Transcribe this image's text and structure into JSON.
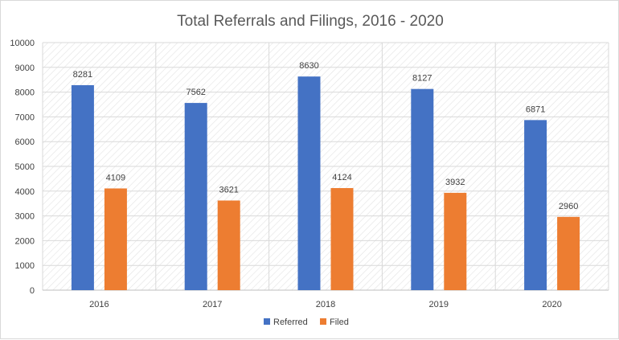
{
  "chart_data": {
    "type": "bar",
    "title": "Total Referrals and Filings, 2016 - 2020",
    "xlabel": "",
    "ylabel": "",
    "categories": [
      "2016",
      "2017",
      "2018",
      "2019",
      "2020"
    ],
    "series": [
      {
        "name": "Referred",
        "color": "#4472C4",
        "values": [
          8281,
          7562,
          8630,
          8127,
          6871
        ]
      },
      {
        "name": "Filed",
        "color": "#ED7D31",
        "values": [
          4109,
          3621,
          4124,
          3932,
          2960
        ]
      }
    ],
    "ylim": [
      0,
      10000
    ],
    "yticks": [
      0,
      1000,
      2000,
      3000,
      4000,
      5000,
      6000,
      7000,
      8000,
      9000,
      10000
    ],
    "grid": true,
    "legend_position": "bottom"
  }
}
